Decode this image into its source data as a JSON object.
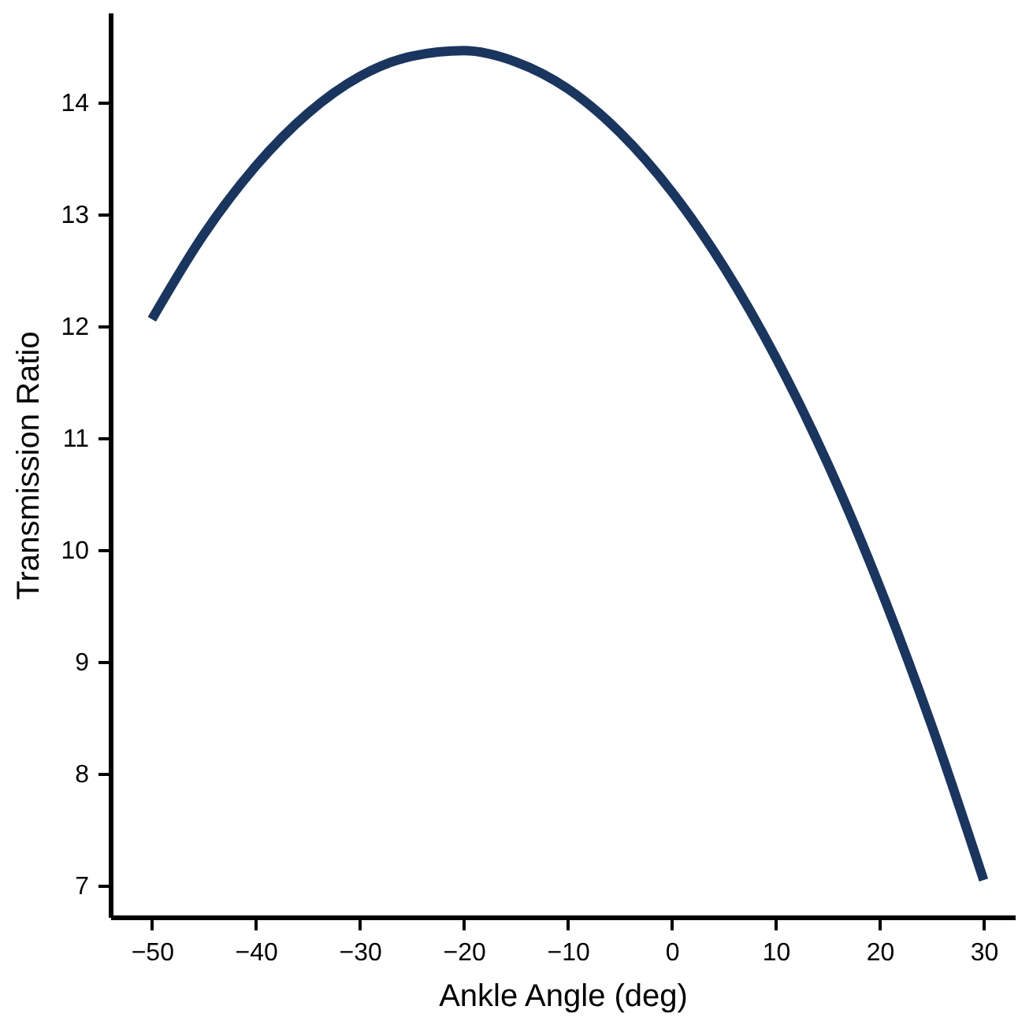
{
  "chart_data": {
    "type": "line",
    "xlabel": "Ankle Angle (deg)",
    "ylabel": "Transmission Ratio",
    "x": [
      -50,
      -45,
      -40,
      -35,
      -30,
      -25,
      -20,
      -15,
      -10,
      -5,
      0,
      5,
      10,
      15,
      20,
      25,
      30
    ],
    "series": [
      {
        "color": "#1a355e",
        "values": [
          12.06,
          12.82,
          13.43,
          13.9,
          14.23,
          14.41,
          14.46,
          14.36,
          14.12,
          13.73,
          13.2,
          12.53,
          11.72,
          10.77,
          9.67,
          8.43,
          7.05
        ]
      }
    ],
    "xlim": [
      -54,
      33
    ],
    "ylim": [
      6.72,
      14.8
    ],
    "xticks": [
      {
        "value": -50,
        "label": "−50"
      },
      {
        "value": -40,
        "label": "−40"
      },
      {
        "value": -30,
        "label": "−30"
      },
      {
        "value": -20,
        "label": "−20"
      },
      {
        "value": -10,
        "label": "−10"
      },
      0,
      10,
      20,
      30
    ],
    "yticks": [
      7,
      8,
      9,
      10,
      11,
      12,
      13,
      14
    ],
    "grid": false,
    "marker": "none",
    "line_style": "solid"
  }
}
